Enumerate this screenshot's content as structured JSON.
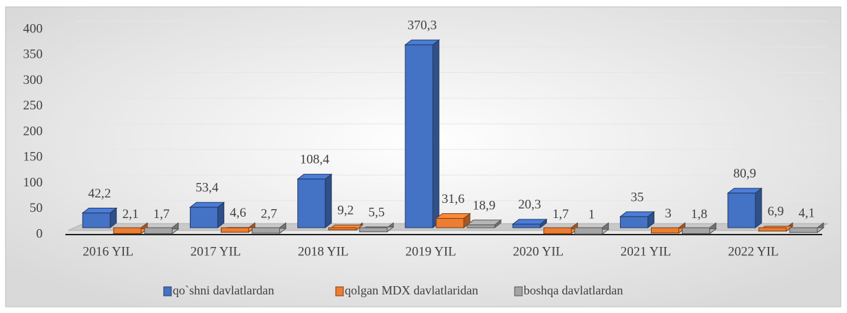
{
  "chart_data": {
    "type": "bar3d",
    "categories": [
      "2016 YIL",
      "2017 YIL",
      "2018 YIL",
      "2019 YIL",
      "2020 YIL",
      "2021 YIL",
      "2022 YIL"
    ],
    "series": [
      {
        "name": "qo`shni davlatlardan",
        "color": "#4472c4",
        "values": [
          42.2,
          53.4,
          108.4,
          370.3,
          20.3,
          35,
          80.9
        ],
        "value_labels": [
          "42,2",
          "53,4",
          "108,4",
          "370,3",
          "20,3",
          "35",
          "80,9"
        ]
      },
      {
        "name": "qolgan MDX davlatlaridan",
        "color": "#ed7d31",
        "values": [
          2.1,
          4.6,
          9.2,
          31.6,
          1.7,
          3,
          6.9
        ],
        "value_labels": [
          "2,1",
          "4,6",
          "9,2",
          "31,6",
          "1,7",
          "3",
          "6,9"
        ]
      },
      {
        "name": "boshqa davlatlardan",
        "color": "#a5a5a5",
        "values": [
          1.7,
          2.7,
          5.5,
          18.9,
          1,
          1.8,
          4.1
        ],
        "value_labels": [
          "1,7",
          "2,7",
          "5,5",
          "18,9",
          "1",
          "1,8",
          "4,1"
        ]
      }
    ],
    "ylim": [
      0,
      400
    ],
    "yticks": [
      0,
      50,
      100,
      150,
      200,
      250,
      300,
      350,
      400
    ],
    "grid": true,
    "legend": "bottom"
  }
}
